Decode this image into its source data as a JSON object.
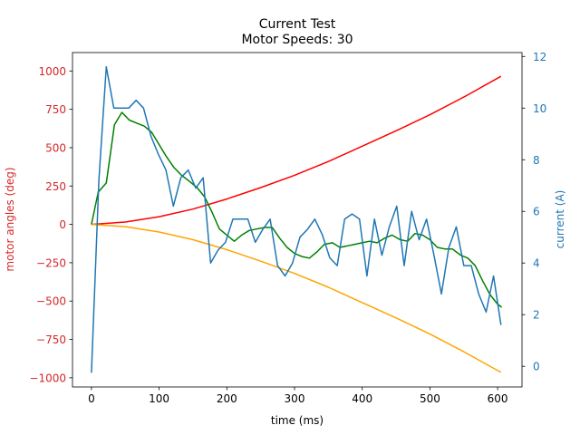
{
  "colors": {
    "left_axis": "#d62728",
    "right_axis": "#1f77b4",
    "series_red": "#ff0000",
    "series_orange": "#ffa500",
    "series_green": "#008000",
    "series_blue": "#1f77b4"
  },
  "chart_data": {
    "type": "line",
    "title": "Current Test",
    "subtitle": "Motor Speeds: 30",
    "xlabel": "time (ms)",
    "ylabel_left": "motor angles (deg)",
    "ylabel_right": "current (A)",
    "xlim": [
      -28,
      636
    ],
    "ylim_left": [
      -1060,
      1120
    ],
    "ylim_right": [
      -0.8,
      12.15
    ],
    "x_ticks": [
      0,
      100,
      200,
      300,
      400,
      500,
      600
    ],
    "x_tick_labels": [
      "0",
      "100",
      "200",
      "300",
      "400",
      "500",
      "600"
    ],
    "y_left_ticks": [
      1000,
      750,
      500,
      250,
      0,
      -250,
      -500,
      -750,
      -1000
    ],
    "y_left_tick_labels": [
      "1000",
      "750",
      "500",
      "250",
      "0",
      "−250",
      "−500",
      "−750",
      "−1000"
    ],
    "y_right_ticks": [
      12,
      10,
      8,
      6,
      4,
      2,
      0
    ],
    "y_right_tick_labels": [
      "12",
      "10",
      "8",
      "6",
      "4",
      "2",
      "0"
    ],
    "grid": false,
    "series": [
      {
        "axis": "left",
        "color": "#ff0000",
        "x": [
          0,
          50,
          100,
          150,
          200,
          250,
          300,
          350,
          400,
          450,
          500,
          550,
          605
        ],
        "y": [
          0,
          15,
          50,
          100,
          165,
          240,
          320,
          410,
          510,
          610,
          715,
          830,
          965
        ]
      },
      {
        "axis": "left",
        "color": "#ffa500",
        "x": [
          0,
          50,
          100,
          150,
          200,
          250,
          300,
          350,
          400,
          450,
          500,
          550,
          605
        ],
        "y": [
          0,
          -15,
          -50,
          -100,
          -165,
          -240,
          -320,
          -410,
          -510,
          -610,
          -715,
          -830,
          -965
        ]
      },
      {
        "axis": "left",
        "color": "#008000",
        "x": [
          0,
          10,
          22,
          34,
          45,
          56,
          67,
          78,
          89,
          100,
          111,
          122,
          133,
          145,
          156,
          167,
          178,
          189,
          200,
          211,
          222,
          233,
          244,
          256,
          267,
          278,
          289,
          300,
          311,
          322,
          333,
          344,
          356,
          367,
          378,
          389,
          400,
          411,
          422,
          433,
          444,
          456,
          467,
          478,
          489,
          500,
          511,
          522,
          533,
          545,
          556,
          567,
          578,
          589,
          600,
          606
        ],
        "y": [
          0,
          210,
          270,
          650,
          730,
          680,
          660,
          640,
          600,
          520,
          440,
          370,
          320,
          280,
          240,
          180,
          80,
          -30,
          -70,
          -110,
          -70,
          -40,
          -30,
          -20,
          -20,
          -90,
          -150,
          -190,
          -210,
          -220,
          -180,
          -130,
          -120,
          -150,
          -140,
          -130,
          -120,
          -110,
          -120,
          -90,
          -70,
          -100,
          -110,
          -60,
          -70,
          -100,
          -150,
          -160,
          -160,
          -200,
          -220,
          -270,
          -370,
          -460,
          -520,
          -540
        ]
      },
      {
        "axis": "right",
        "color": "#1f77b4",
        "x": [
          0,
          11,
          22,
          33,
          44,
          55,
          66,
          77,
          88,
          99,
          110,
          121,
          132,
          143,
          154,
          165,
          176,
          187,
          198,
          209,
          220,
          231,
          242,
          253,
          264,
          275,
          286,
          297,
          308,
          319,
          330,
          341,
          352,
          363,
          374,
          385,
          396,
          407,
          418,
          429,
          440,
          451,
          462,
          473,
          484,
          495,
          506,
          517,
          528,
          539,
          550,
          561,
          572,
          583,
          594,
          605
        ],
        "y": [
          -0.25,
          7.2,
          11.6,
          10.0,
          10.0,
          10.0,
          10.3,
          10.0,
          8.9,
          8.2,
          7.6,
          6.2,
          7.3,
          7.6,
          6.9,
          7.3,
          4.0,
          4.5,
          4.8,
          5.7,
          5.7,
          5.7,
          4.8,
          5.3,
          5.7,
          3.9,
          3.5,
          4.0,
          5.0,
          5.3,
          5.7,
          5.1,
          4.2,
          3.9,
          5.7,
          5.9,
          5.7,
          3.5,
          5.7,
          4.3,
          5.4,
          6.2,
          3.9,
          6.0,
          4.9,
          5.7,
          4.3,
          2.8,
          4.6,
          5.4,
          3.9,
          3.9,
          2.8,
          2.1,
          3.5,
          1.6
        ]
      }
    ]
  }
}
